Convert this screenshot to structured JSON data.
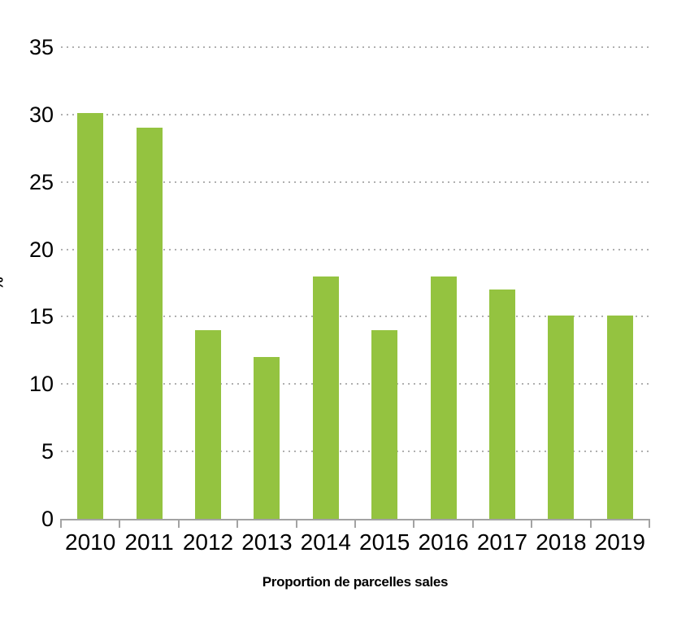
{
  "chart_data": {
    "type": "bar",
    "title": "",
    "xlabel": "Proportion de parcelles sales",
    "ylabel": "%",
    "categories": [
      "2010",
      "2011",
      "2012",
      "2013",
      "2014",
      "2015",
      "2016",
      "2017",
      "2018",
      "2019"
    ],
    "values": [
      30.1,
      29,
      14,
      12,
      18,
      14,
      18,
      17,
      15.1,
      15.1
    ],
    "ylim": [
      0,
      35
    ],
    "yticks": [
      0,
      5,
      10,
      15,
      20,
      25,
      30,
      35
    ],
    "grid": "horizontal-dotted",
    "legend": "none",
    "bar_color": "#94C340",
    "axis_color": "#A3A3A3",
    "gridline_color": "#B0B0B0",
    "text_color": "#000000"
  }
}
